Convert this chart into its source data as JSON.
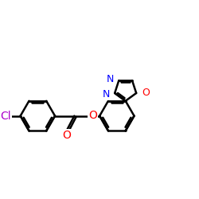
{
  "bg_color": "#ffffff",
  "bond_color": "#000000",
  "bond_width": 1.8,
  "atom_colors": {
    "Cl": "#aa00cc",
    "O": "#ff0000",
    "N": "#0000ff"
  },
  "font_size": 10
}
